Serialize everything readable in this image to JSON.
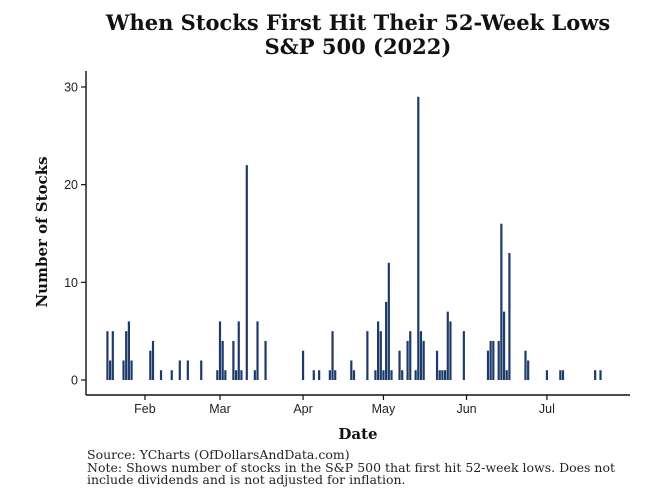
{
  "chart_data": {
    "type": "bar",
    "title": "When Stocks First Hit Their 52-Week Lows",
    "subtitle": "S&P 500 (2022)",
    "xlabel": "Date",
    "ylabel": "Number of Stocks",
    "ylim": [
      0,
      31.5
    ],
    "xlim": [
      "2022-01-10",
      "2022-08-01"
    ],
    "grid": false,
    "x_ticks": [
      {
        "label": "Feb",
        "date": "2022-02-01"
      },
      {
        "label": "Mar",
        "date": "2022-03-01"
      },
      {
        "label": "Apr",
        "date": "2022-04-01"
      },
      {
        "label": "May",
        "date": "2022-05-01"
      },
      {
        "label": "Jun",
        "date": "2022-06-01"
      },
      {
        "label": "Jul",
        "date": "2022-07-01"
      }
    ],
    "y_ticks": [
      0,
      10,
      20,
      30
    ],
    "x": [
      "2022-01-18",
      "2022-01-19",
      "2022-01-20",
      "2022-01-24",
      "2022-01-25",
      "2022-01-26",
      "2022-01-27",
      "2022-02-03",
      "2022-02-04",
      "2022-02-07",
      "2022-02-11",
      "2022-02-14",
      "2022-02-17",
      "2022-02-22",
      "2022-02-28",
      "2022-03-01",
      "2022-03-02",
      "2022-03-03",
      "2022-03-06",
      "2022-03-07",
      "2022-03-08",
      "2022-03-09",
      "2022-03-11",
      "2022-03-14",
      "2022-03-15",
      "2022-03-18",
      "2022-04-01",
      "2022-04-05",
      "2022-04-07",
      "2022-04-11",
      "2022-04-12",
      "2022-04-13",
      "2022-04-19",
      "2022-04-20",
      "2022-04-25",
      "2022-04-28",
      "2022-04-29",
      "2022-04-30",
      "2022-05-01",
      "2022-05-02",
      "2022-05-03",
      "2022-05-04",
      "2022-05-07",
      "2022-05-08",
      "2022-05-10",
      "2022-05-11",
      "2022-05-13",
      "2022-05-14",
      "2022-05-15",
      "2022-05-16",
      "2022-05-21",
      "2022-05-22",
      "2022-05-23",
      "2022-05-24",
      "2022-05-25",
      "2022-05-26",
      "2022-05-31",
      "2022-06-09",
      "2022-06-10",
      "2022-06-11",
      "2022-06-13",
      "2022-06-14",
      "2022-06-15",
      "2022-06-16",
      "2022-06-17",
      "2022-06-23",
      "2022-06-24",
      "2022-07-01",
      "2022-07-06",
      "2022-07-07",
      "2022-07-19",
      "2022-07-21"
    ],
    "values": [
      5,
      2,
      5,
      2,
      5,
      6,
      2,
      3,
      4,
      1,
      1,
      2,
      2,
      2,
      1,
      6,
      4,
      1,
      4,
      1,
      6,
      1,
      22,
      1,
      6,
      4,
      3,
      1,
      1,
      1,
      5,
      1,
      2,
      1,
      5,
      1,
      6,
      5,
      1,
      8,
      12,
      1,
      3,
      1,
      4,
      5,
      1,
      29,
      5,
      4,
      3,
      1,
      1,
      1,
      7,
      6,
      5,
      3,
      4,
      4,
      4,
      16,
      7,
      1,
      13,
      3,
      2,
      1,
      1,
      1,
      1,
      1
    ],
    "series_color": "#1d3a6b",
    "source_note": "Source: YCharts (OfDollarsAndData.com)",
    "note": "Note: Shows number of stocks in the S&P 500 that first hit 52-week lows. Does not include dividends and is not adjusted for inflation."
  }
}
